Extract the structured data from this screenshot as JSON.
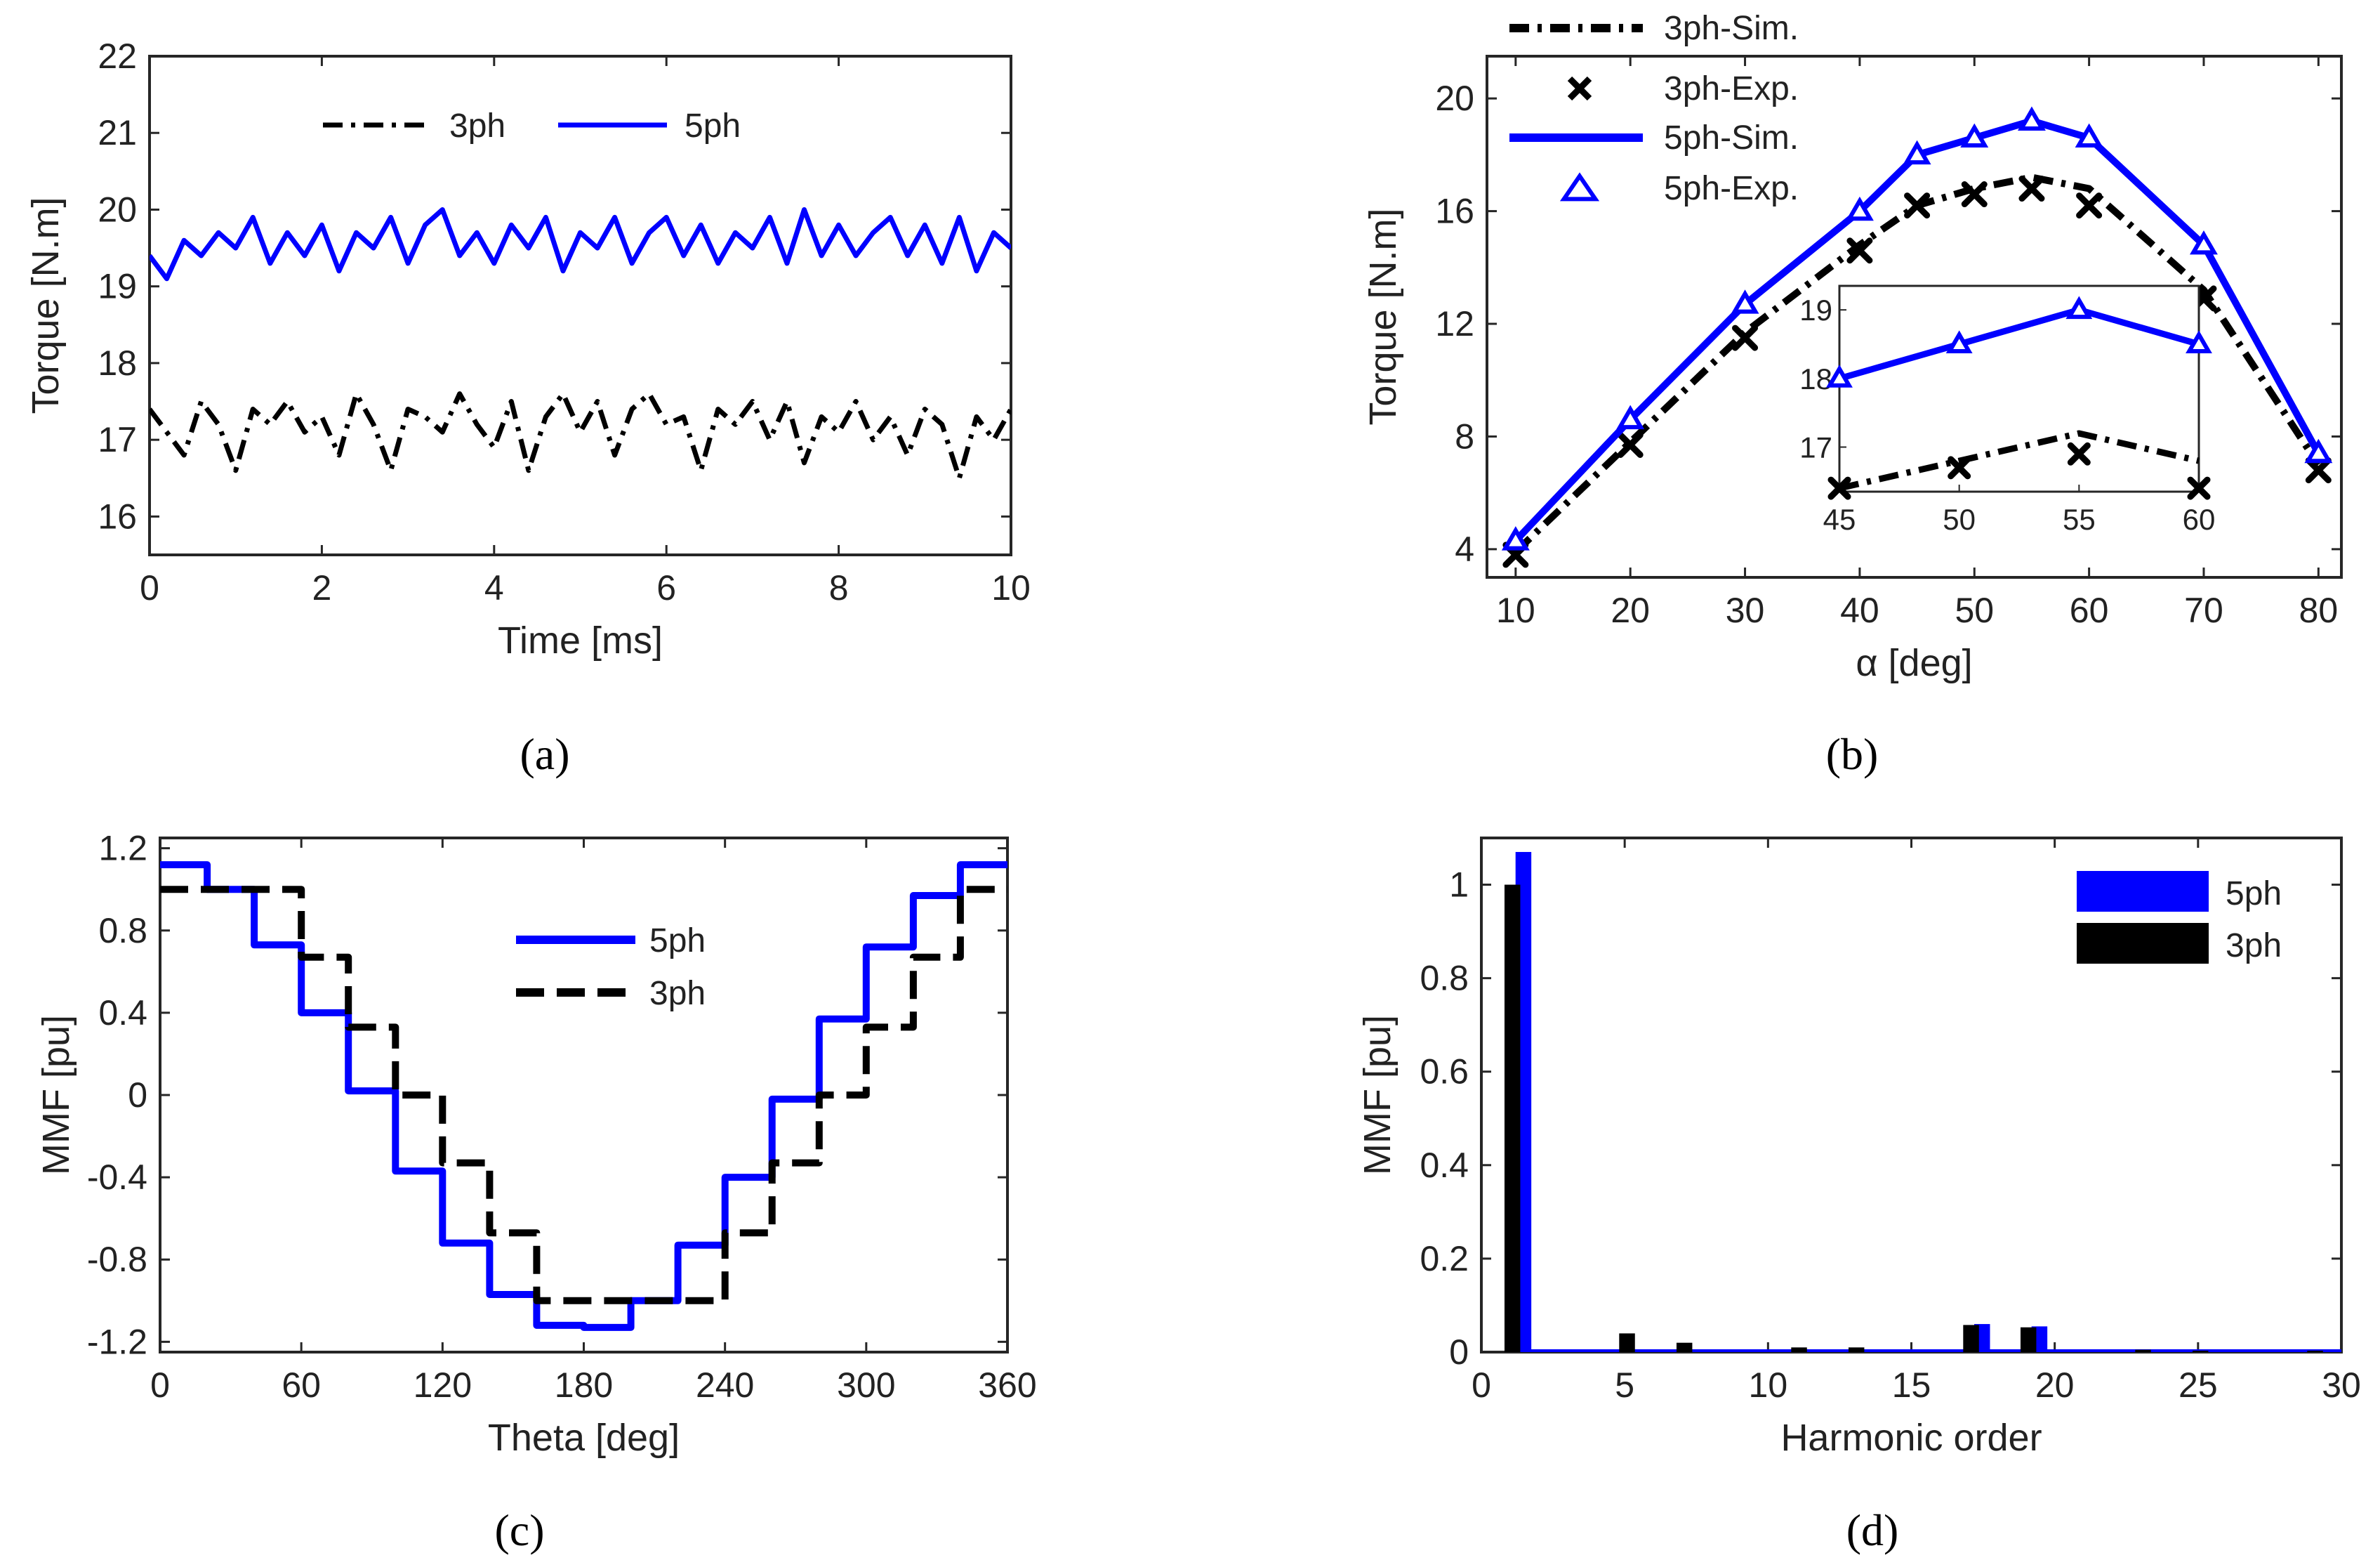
{
  "chart_data": [
    {
      "panel": "a",
      "type": "line",
      "caption": "(a)",
      "xlabel": "Time [ms]",
      "ylabel": "Torque [N.m]",
      "xlim": [
        0,
        10
      ],
      "ylim": [
        15.5,
        22
      ],
      "xticks": [
        "0",
        "2",
        "4",
        "6",
        "8",
        "10"
      ],
      "yticks": [
        "16",
        "17",
        "18",
        "19",
        "20",
        "21",
        "22"
      ],
      "legend_position": "top-center",
      "series": [
        {
          "name": "3ph",
          "color": "#000000",
          "style": "dash-dot",
          "mean": 17.1,
          "min": 16.4,
          "max": 17.7,
          "x": [
            0,
            0.2,
            0.4,
            0.6,
            0.8,
            1.0,
            1.2,
            1.4,
            1.6,
            1.8,
            2.0,
            2.2,
            2.4,
            2.6,
            2.8,
            3.0,
            3.2,
            3.4,
            3.6,
            3.8,
            4.0,
            4.2,
            4.4,
            4.6,
            4.8,
            5.0,
            5.2,
            5.4,
            5.6,
            5.8,
            6.0,
            6.2,
            6.4,
            6.6,
            6.8,
            7.0,
            7.2,
            7.4,
            7.6,
            7.8,
            8.0,
            8.2,
            8.4,
            8.6,
            8.8,
            9.0,
            9.2,
            9.4,
            9.6,
            9.8,
            10.0
          ],
          "y": [
            17.4,
            17.1,
            16.8,
            17.5,
            17.2,
            16.6,
            17.4,
            17.2,
            17.5,
            17.1,
            17.3,
            16.8,
            17.6,
            17.2,
            16.6,
            17.4,
            17.3,
            17.1,
            17.6,
            17.2,
            16.9,
            17.5,
            16.6,
            17.3,
            17.6,
            17.1,
            17.5,
            16.8,
            17.4,
            17.6,
            17.2,
            17.3,
            16.6,
            17.4,
            17.2,
            17.5,
            17.0,
            17.5,
            16.7,
            17.3,
            17.1,
            17.5,
            17.0,
            17.3,
            16.8,
            17.4,
            17.2,
            16.5,
            17.3,
            17.0,
            17.4
          ]
        },
        {
          "name": "5ph",
          "color": "#0000ff",
          "style": "solid",
          "mean": 19.6,
          "min": 19.1,
          "max": 20.1,
          "x": [
            0,
            0.2,
            0.4,
            0.6,
            0.8,
            1.0,
            1.2,
            1.4,
            1.6,
            1.8,
            2.0,
            2.2,
            2.4,
            2.6,
            2.8,
            3.0,
            3.2,
            3.4,
            3.6,
            3.8,
            4.0,
            4.2,
            4.4,
            4.6,
            4.8,
            5.0,
            5.2,
            5.4,
            5.6,
            5.8,
            6.0,
            6.2,
            6.4,
            6.6,
            6.8,
            7.0,
            7.2,
            7.4,
            7.6,
            7.8,
            8.0,
            8.2,
            8.4,
            8.6,
            8.8,
            9.0,
            9.2,
            9.4,
            9.6,
            9.8,
            10.0
          ],
          "y": [
            19.4,
            19.1,
            19.6,
            19.4,
            19.7,
            19.5,
            19.9,
            19.3,
            19.7,
            19.4,
            19.8,
            19.2,
            19.7,
            19.5,
            19.9,
            19.3,
            19.8,
            20.0,
            19.4,
            19.7,
            19.3,
            19.8,
            19.5,
            19.9,
            19.2,
            19.7,
            19.5,
            19.9,
            19.3,
            19.7,
            19.9,
            19.4,
            19.8,
            19.3,
            19.7,
            19.5,
            19.9,
            19.3,
            20.0,
            19.4,
            19.8,
            19.4,
            19.7,
            19.9,
            19.4,
            19.8,
            19.3,
            19.9,
            19.2,
            19.7,
            19.5
          ]
        }
      ]
    },
    {
      "panel": "b",
      "type": "line",
      "caption": "(b)",
      "xlabel": "α [deg]",
      "ylabel": "Torque [N.m]",
      "xlim": [
        7.5,
        82
      ],
      "ylim": [
        3,
        21.5
      ],
      "xticks": [
        "10",
        "20",
        "30",
        "40",
        "50",
        "60",
        "70",
        "80"
      ],
      "yticks": [
        "4",
        "8",
        "12",
        "16",
        "20"
      ],
      "legend_position": "top-left",
      "series": [
        {
          "name": "3ph-Sim.",
          "color": "#000000",
          "style": "dash-dot",
          "x": [
            10,
            20,
            30,
            40,
            45,
            50,
            55,
            60,
            70,
            80
          ],
          "y": [
            3.9,
            7.8,
            11.7,
            14.8,
            16.2,
            16.8,
            17.2,
            16.8,
            13.2,
            7.0
          ]
        },
        {
          "name": "3ph-Exp.",
          "color": "#000000",
          "marker": "x",
          "x": [
            10,
            20,
            30,
            40,
            45,
            50,
            55,
            60,
            70,
            80
          ],
          "y": [
            3.8,
            7.7,
            11.5,
            14.6,
            16.2,
            16.6,
            16.8,
            16.2,
            12.9,
            6.8
          ]
        },
        {
          "name": "5ph-Sim.",
          "color": "#0000ff",
          "style": "solid",
          "x": [
            10,
            20,
            30,
            40,
            45,
            50,
            55,
            60,
            70,
            80
          ],
          "y": [
            4.3,
            8.6,
            12.7,
            16.0,
            18.0,
            18.6,
            19.2,
            18.6,
            14.8,
            7.4
          ]
        },
        {
          "name": "5ph-Exp.",
          "color": "#0000ff",
          "marker": "triangle",
          "x": [
            10,
            20,
            30,
            40,
            45,
            50,
            55,
            60,
            70,
            80
          ],
          "y": [
            4.3,
            8.6,
            12.7,
            16.0,
            18.0,
            18.6,
            19.2,
            18.6,
            14.8,
            7.4
          ]
        }
      ],
      "inset": {
        "xlim": [
          45,
          60
        ],
        "ylim": [
          16.35,
          19.35
        ],
        "xticks": [
          "45",
          "50",
          "55",
          "60"
        ],
        "yticks": [
          "17",
          "18",
          "19"
        ],
        "series": [
          {
            "name": "5ph",
            "color": "#0000ff",
            "marker": "triangle",
            "x": [
              45,
              50,
              55,
              60
            ],
            "y": [
              18.0,
              18.5,
              19.0,
              18.5
            ]
          },
          {
            "name": "3ph",
            "color": "#000000",
            "marker": "x",
            "x": [
              45,
              50,
              55,
              60
            ],
            "y": [
              16.4,
              16.7,
              16.9,
              16.4
            ]
          }
        ]
      }
    },
    {
      "panel": "c",
      "type": "line",
      "caption": "(c)",
      "xlabel": "Theta [deg]",
      "ylabel": "MMF [pu]",
      "xlim": [
        0,
        360
      ],
      "ylim": [
        -1.25,
        1.25
      ],
      "xticks": [
        "0",
        "60",
        "120",
        "180",
        "240",
        "300",
        "360"
      ],
      "yticks": [
        "1.2",
        "0.8",
        "0.4",
        "0",
        "-0.4",
        "-0.8",
        "-1.2"
      ],
      "legend_position": "top-center",
      "series": [
        {
          "name": "5ph",
          "color": "#0000ff",
          "style": "solid-step",
          "x": [
            0,
            20,
            20,
            40,
            40,
            60,
            60,
            80,
            80,
            100,
            100,
            120,
            120,
            140,
            140,
            160,
            160,
            180,
            180,
            200,
            200,
            220,
            220,
            240,
            240,
            260,
            260,
            280,
            280,
            300,
            300,
            320,
            320,
            340,
            340,
            360
          ],
          "y": [
            1.12,
            1.12,
            1.0,
            1.0,
            0.73,
            0.73,
            0.4,
            0.4,
            0.02,
            0.02,
            -0.37,
            -0.37,
            -0.72,
            -0.72,
            -0.97,
            -0.97,
            -1.12,
            -1.12,
            -1.13,
            -1.13,
            -1.0,
            -1.0,
            -0.73,
            -0.73,
            -0.4,
            -0.4,
            -0.02,
            -0.02,
            0.37,
            0.37,
            0.72,
            0.72,
            0.97,
            0.97,
            1.12,
            1.12
          ]
        },
        {
          "name": "3ph",
          "color": "#000000",
          "style": "dash-step",
          "x": [
            0,
            60,
            60,
            80,
            80,
            100,
            100,
            120,
            120,
            140,
            140,
            160,
            160,
            240,
            240,
            260,
            260,
            280,
            280,
            300,
            300,
            320,
            320,
            340,
            340,
            360
          ],
          "y": [
            1.0,
            1.0,
            0.67,
            0.67,
            0.33,
            0.33,
            0.0,
            0.0,
            -0.33,
            -0.33,
            -0.67,
            -0.67,
            -1.0,
            -1.0,
            -0.67,
            -0.67,
            -0.33,
            -0.33,
            0.0,
            0.0,
            0.33,
            0.33,
            0.67,
            0.67,
            1.0,
            1.0
          ]
        }
      ]
    },
    {
      "panel": "d",
      "type": "bar",
      "caption": "(d)",
      "xlabel": "Harmonic order",
      "ylabel": "MMF [pu]",
      "xlim": [
        0,
        30
      ],
      "ylim": [
        0,
        1.1
      ],
      "xticks": [
        "0",
        "5",
        "10",
        "15",
        "20",
        "25",
        "30"
      ],
      "yticks": [
        "0",
        "0.2",
        "0.4",
        "0.6",
        "0.8",
        "1"
      ],
      "legend_position": "top-right",
      "categories": [
        1,
        5,
        7,
        11,
        13,
        17,
        19,
        23,
        25,
        29
      ],
      "series": [
        {
          "name": "5ph",
          "color": "#0000ff",
          "values": [
            1.07,
            0.0,
            0.0,
            0.0,
            0.0,
            0.06,
            0.055,
            0.0,
            0.0,
            0.0
          ]
        },
        {
          "name": "3ph",
          "color": "#000000",
          "values": [
            1.0,
            0.04,
            0.02,
            0.01,
            0.01,
            0.058,
            0.053,
            0.005,
            0.003,
            0.003
          ]
        }
      ]
    }
  ]
}
